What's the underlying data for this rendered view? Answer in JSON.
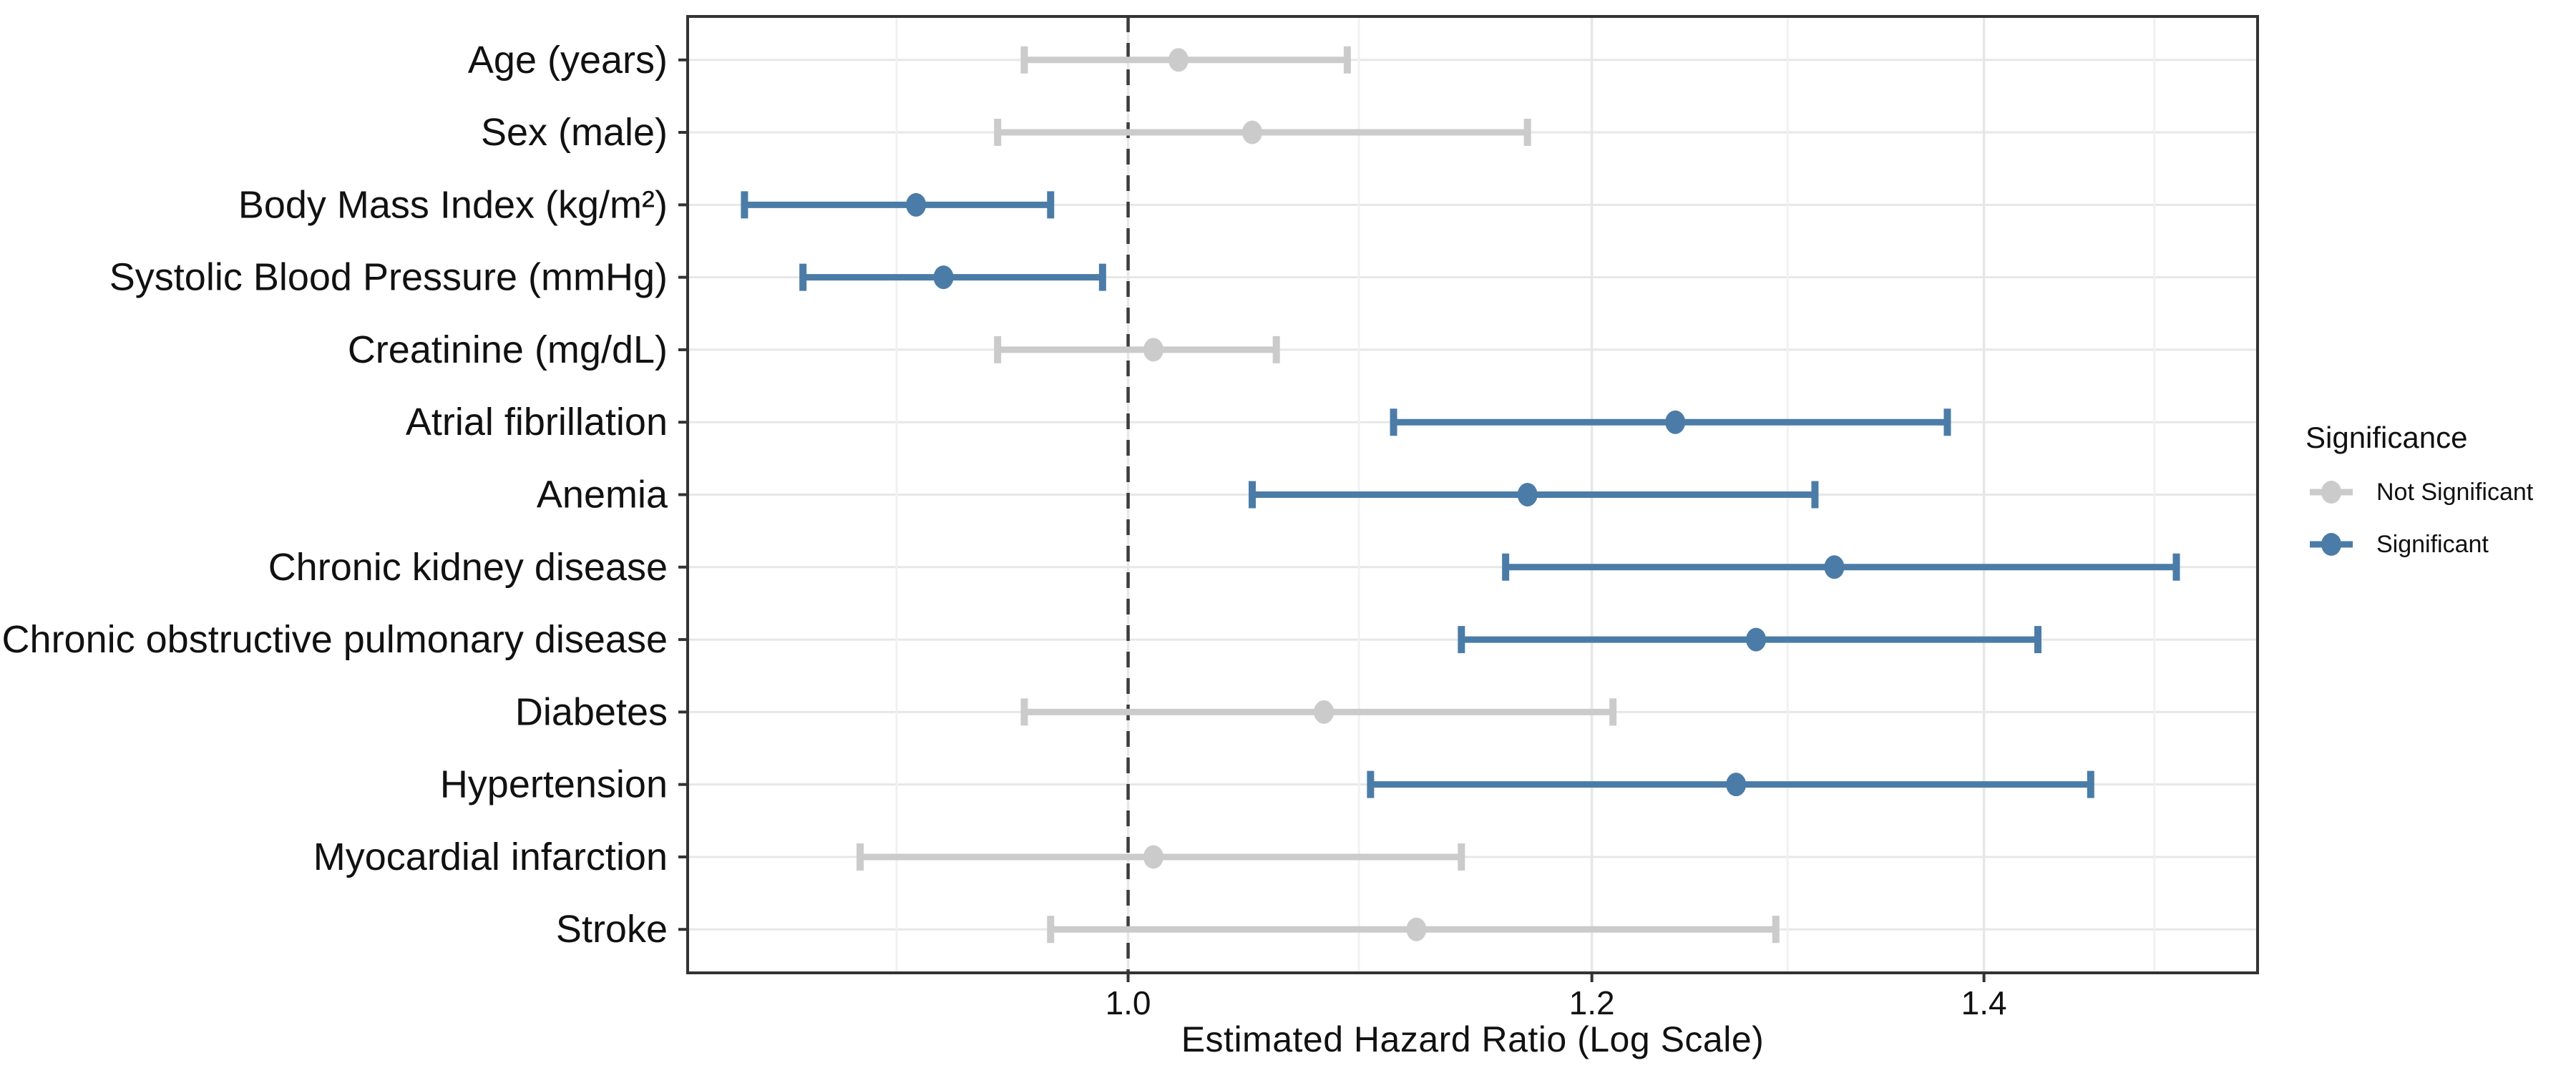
{
  "chart_data": {
    "type": "scatter",
    "subtype": "forest-plot-errorbar",
    "xlabel": "Estimated Hazard Ratio (Log Scale)",
    "x_scale": "log",
    "xlim": [
      0.841,
      1.559
    ],
    "x_ticks": [
      1.0,
      1.2,
      1.4
    ],
    "x_tick_labels": [
      "1.0",
      "1.2",
      "1.4"
    ],
    "x_minor_gridlines": [
      0.913,
      1.095,
      1.296,
      1.497
    ],
    "reference_line": 1.0,
    "grid": "on",
    "legend": {
      "title": "Significance",
      "position": "right",
      "entries": [
        {
          "label": "Not Significant",
          "color": "#CBCBCB"
        },
        {
          "label": "Significant",
          "color": "#4B7CA7"
        }
      ]
    },
    "rows": [
      {
        "label": "Age (years)",
        "hr": 1.02,
        "ci_low": 0.96,
        "ci_high": 1.09,
        "significant": false
      },
      {
        "label": "Sex (male)",
        "hr": 1.05,
        "ci_low": 0.95,
        "ci_high": 1.17,
        "significant": false
      },
      {
        "label": "Body Mass Index (kg/m²)",
        "hr": 0.92,
        "ci_low": 0.86,
        "ci_high": 0.97,
        "significant": true
      },
      {
        "label": "Systolic Blood Pressure (mmHg)",
        "hr": 0.93,
        "ci_low": 0.88,
        "ci_high": 0.99,
        "significant": true
      },
      {
        "label": "Creatinine (mg/dL)",
        "hr": 1.01,
        "ci_low": 0.95,
        "ci_high": 1.06,
        "significant": false
      },
      {
        "label": "Atrial fibrillation",
        "hr": 1.24,
        "ci_low": 1.11,
        "ci_high": 1.38,
        "significant": true
      },
      {
        "label": "Anemia",
        "hr": 1.17,
        "ci_low": 1.05,
        "ci_high": 1.31,
        "significant": true
      },
      {
        "label": "Chronic kidney disease",
        "hr": 1.32,
        "ci_low": 1.16,
        "ci_high": 1.51,
        "significant": true
      },
      {
        "label": "Chronic obstructive pulmonary disease",
        "hr": 1.28,
        "ci_low": 1.14,
        "ci_high": 1.43,
        "significant": true
      },
      {
        "label": "Diabetes",
        "hr": 1.08,
        "ci_low": 0.96,
        "ci_high": 1.21,
        "significant": false
      },
      {
        "label": "Hypertension",
        "hr": 1.27,
        "ci_low": 1.1,
        "ci_high": 1.46,
        "significant": true
      },
      {
        "label": "Myocardial infarction",
        "hr": 1.01,
        "ci_low": 0.9,
        "ci_high": 1.14,
        "significant": false
      },
      {
        "label": "Stroke",
        "hr": 1.12,
        "ci_low": 0.97,
        "ci_high": 1.29,
        "significant": false
      }
    ]
  },
  "colors": {
    "significant": "#4B7CA7",
    "not_significant": "#CBCBCB",
    "panel_border": "#333333",
    "reference_line": "#3C3C3C",
    "grid_major": "#E7E7E7",
    "grid_minor": "#F1F1F1",
    "axis_text": "#111111"
  }
}
